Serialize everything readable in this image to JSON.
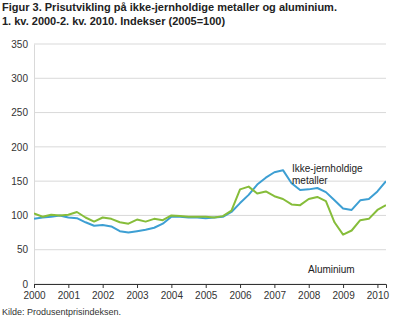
{
  "chart_data": {
    "type": "line",
    "title": "Figur 3. Prisutvikling på ikke-jernholdige metaller og aluminium.",
    "subtitle": "1. kv. 2000-2. kv. 2010. Indekser (2005=100)",
    "source": "Kilde: Produsentprisindeksen.",
    "categories": [
      "2000",
      null,
      null,
      null,
      "2001",
      null,
      null,
      null,
      "2002",
      null,
      null,
      null,
      "2003",
      null,
      null,
      null,
      "2004",
      null,
      null,
      null,
      "2005",
      null,
      null,
      null,
      "2006",
      null,
      null,
      null,
      "2007",
      null,
      null,
      null,
      "2008",
      null,
      null,
      null,
      "2009",
      null,
      null,
      null,
      "2010",
      null
    ],
    "series": [
      {
        "name": "Ikke-jernholdige metaller",
        "color": "#3d9fd3",
        "values": [
          95,
          97,
          98,
          100,
          97,
          96,
          90,
          85,
          86,
          84,
          77,
          75,
          77,
          79,
          82,
          88,
          98,
          98,
          97,
          97,
          96,
          97,
          98,
          105,
          118,
          130,
          145,
          155,
          163,
          166,
          147,
          137,
          138,
          140,
          134,
          122,
          110,
          108,
          122,
          124,
          135,
          150
        ]
      },
      {
        "name": "Aluminium",
        "color": "#86bd3a",
        "values": [
          103,
          98,
          101,
          100,
          101,
          105,
          97,
          91,
          97,
          95,
          90,
          88,
          94,
          91,
          95,
          93,
          100,
          99,
          98,
          98,
          98,
          97,
          99,
          107,
          138,
          142,
          132,
          135,
          128,
          124,
          116,
          115,
          124,
          127,
          121,
          90,
          72,
          78,
          93,
          95,
          108,
          115
        ]
      }
    ],
    "ylim": [
      0,
      350
    ],
    "yticks": [
      0,
      50,
      100,
      150,
      200,
      250,
      300,
      350
    ],
    "grid": true
  }
}
